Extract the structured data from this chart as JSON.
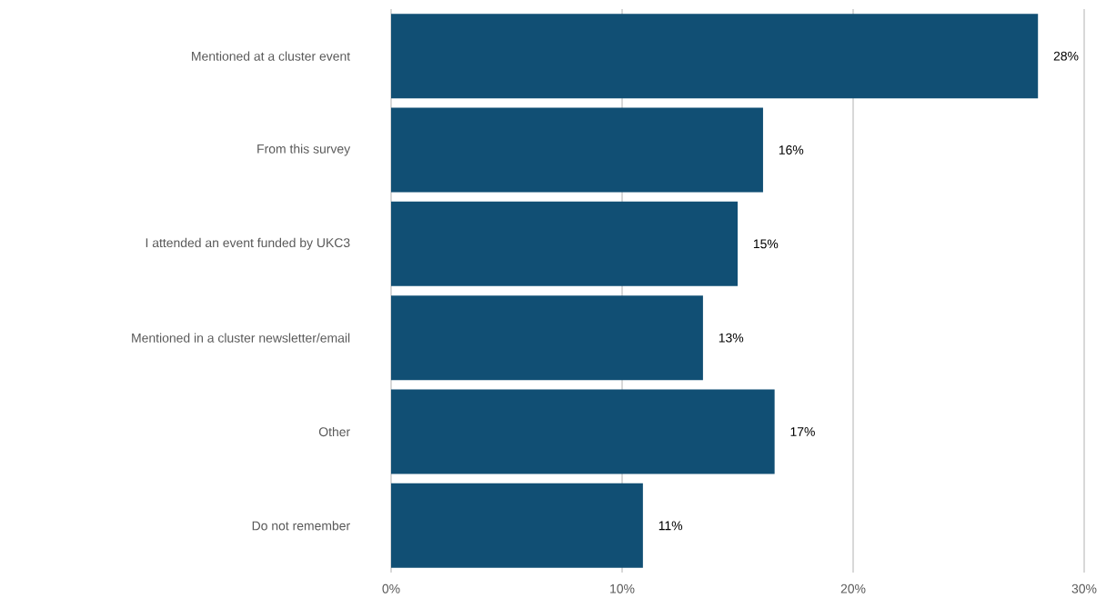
{
  "chart_data": {
    "type": "bar",
    "orientation": "horizontal",
    "categories": [
      "Mentioned at a cluster event",
      "From this survey",
      "I attended an event funded by UKC3",
      "Mentioned in a cluster newsletter/email",
      "Other",
      "Do not remember"
    ],
    "values": [
      28.0,
      16.1,
      15.0,
      13.5,
      16.6,
      10.9
    ],
    "value_labels": [
      "28%",
      "16%",
      "15%",
      "13%",
      "17%",
      "11%"
    ],
    "color": "#114f74",
    "xlim": [
      0,
      30
    ],
    "xticks": [
      {
        "value": 0,
        "label": "0%"
      },
      {
        "value": 10,
        "label": "10%"
      },
      {
        "value": 20,
        "label": "20%"
      },
      {
        "value": 30,
        "label": "30%"
      }
    ],
    "grid": "x"
  }
}
